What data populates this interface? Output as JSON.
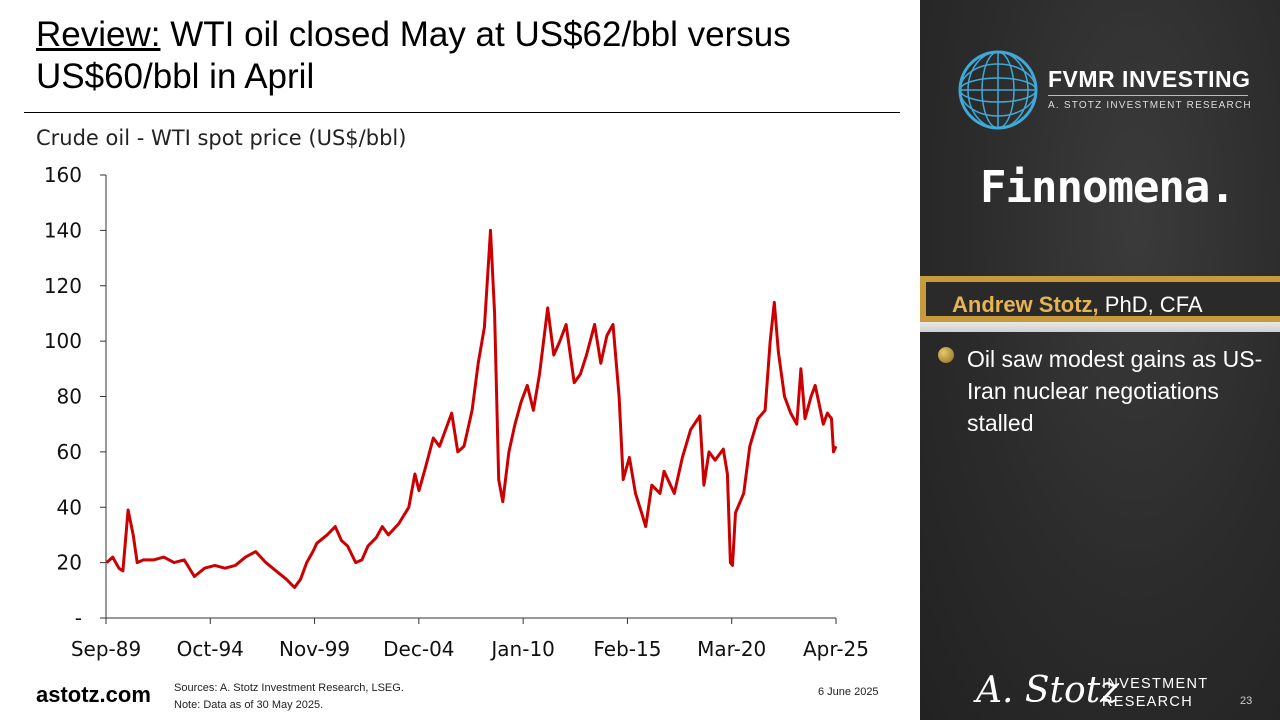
{
  "slide": {
    "title_lead": "Review:",
    "title_rest": " WTI oil closed May at US$62/bbl versus US$60/bbl in April",
    "source_line1": "Sources: A. Stotz Investment Research, LSEG.",
    "source_line2": "Note: Data as of 30 May 2025.",
    "date": "6 June 2025",
    "footer_site": "astotz.com",
    "page_number": "23"
  },
  "sidebar": {
    "brand_name": "FVMR INVESTING",
    "brand_sub": "A. STOTZ INVESTMENT RESEARCH",
    "partner": "Finnomena.",
    "author_name": "Andrew Stotz,",
    "author_credentials": " PhD, CFA",
    "bullet": "Oil saw modest gains as US-Iran nuclear negotiations stalled",
    "signature": "A. Stotz",
    "research_line1": "INVESTMENT",
    "research_line2": "RESEARCH",
    "accent_color": "#c79a3c"
  },
  "chart_data": {
    "type": "line",
    "title": "Crude oil - WTI spot price (US$/bbl)",
    "x_tick_labels": [
      "Sep-89",
      "Oct-94",
      "Nov-99",
      "Dec-04",
      "Jan-10",
      "Feb-15",
      "Mar-20",
      "Apr-25"
    ],
    "y_tick_labels": [
      "-",
      "20",
      "40",
      "60",
      "80",
      "100",
      "120",
      "140",
      "160"
    ],
    "ylim": [
      0,
      160
    ],
    "xlim_years": [
      1989.67,
      2025.42
    ],
    "line_color": "#cc0000",
    "series": [
      {
        "name": "WTI spot price",
        "points": [
          [
            1989.7,
            20
          ],
          [
            1990.0,
            22
          ],
          [
            1990.3,
            18
          ],
          [
            1990.5,
            17
          ],
          [
            1990.75,
            39
          ],
          [
            1991.0,
            30
          ],
          [
            1991.2,
            20
          ],
          [
            1991.5,
            21
          ],
          [
            1992.0,
            21
          ],
          [
            1992.5,
            22
          ],
          [
            1993.0,
            20
          ],
          [
            1993.5,
            21
          ],
          [
            1994.0,
            15
          ],
          [
            1994.5,
            18
          ],
          [
            1995.0,
            19
          ],
          [
            1995.5,
            18
          ],
          [
            1996.0,
            19
          ],
          [
            1996.5,
            22
          ],
          [
            1997.0,
            24
          ],
          [
            1997.5,
            20
          ],
          [
            1998.0,
            17
          ],
          [
            1998.5,
            14
          ],
          [
            1998.9,
            11
          ],
          [
            1999.2,
            14
          ],
          [
            1999.5,
            20
          ],
          [
            1999.8,
            24
          ],
          [
            2000.0,
            27
          ],
          [
            2000.5,
            30
          ],
          [
            2000.9,
            33
          ],
          [
            2001.2,
            28
          ],
          [
            2001.5,
            26
          ],
          [
            2001.9,
            20
          ],
          [
            2002.2,
            21
          ],
          [
            2002.5,
            26
          ],
          [
            2002.9,
            29
          ],
          [
            2003.2,
            33
          ],
          [
            2003.5,
            30
          ],
          [
            2004.0,
            34
          ],
          [
            2004.5,
            40
          ],
          [
            2004.8,
            52
          ],
          [
            2005.0,
            46
          ],
          [
            2005.3,
            54
          ],
          [
            2005.7,
            65
          ],
          [
            2006.0,
            62
          ],
          [
            2006.6,
            74
          ],
          [
            2006.9,
            60
          ],
          [
            2007.2,
            62
          ],
          [
            2007.6,
            75
          ],
          [
            2007.9,
            92
          ],
          [
            2008.2,
            105
          ],
          [
            2008.5,
            140
          ],
          [
            2008.7,
            110
          ],
          [
            2008.9,
            50
          ],
          [
            2009.1,
            42
          ],
          [
            2009.4,
            60
          ],
          [
            2009.7,
            70
          ],
          [
            2010.0,
            78
          ],
          [
            2010.3,
            84
          ],
          [
            2010.6,
            75
          ],
          [
            2010.9,
            88
          ],
          [
            2011.3,
            112
          ],
          [
            2011.6,
            95
          ],
          [
            2011.9,
            100
          ],
          [
            2012.2,
            106
          ],
          [
            2012.6,
            85
          ],
          [
            2012.9,
            88
          ],
          [
            2013.2,
            95
          ],
          [
            2013.6,
            106
          ],
          [
            2013.9,
            92
          ],
          [
            2014.2,
            102
          ],
          [
            2014.5,
            106
          ],
          [
            2014.8,
            80
          ],
          [
            2015.0,
            50
          ],
          [
            2015.3,
            58
          ],
          [
            2015.6,
            45
          ],
          [
            2015.9,
            38
          ],
          [
            2016.1,
            33
          ],
          [
            2016.4,
            48
          ],
          [
            2016.8,
            45
          ],
          [
            2017.0,
            53
          ],
          [
            2017.5,
            45
          ],
          [
            2017.9,
            58
          ],
          [
            2018.3,
            68
          ],
          [
            2018.75,
            73
          ],
          [
            2018.95,
            48
          ],
          [
            2019.2,
            60
          ],
          [
            2019.5,
            57
          ],
          [
            2019.9,
            61
          ],
          [
            2020.1,
            52
          ],
          [
            2020.25,
            20
          ],
          [
            2020.35,
            19
          ],
          [
            2020.5,
            38
          ],
          [
            2020.9,
            45
          ],
          [
            2021.2,
            62
          ],
          [
            2021.6,
            72
          ],
          [
            2021.95,
            75
          ],
          [
            2022.2,
            100
          ],
          [
            2022.4,
            114
          ],
          [
            2022.6,
            96
          ],
          [
            2022.9,
            80
          ],
          [
            2023.2,
            74
          ],
          [
            2023.5,
            70
          ],
          [
            2023.7,
            90
          ],
          [
            2023.9,
            72
          ],
          [
            2024.2,
            80
          ],
          [
            2024.4,
            84
          ],
          [
            2024.6,
            77
          ],
          [
            2024.8,
            70
          ],
          [
            2025.0,
            74
          ],
          [
            2025.2,
            72
          ],
          [
            2025.3,
            60
          ],
          [
            2025.42,
            62
          ]
        ]
      }
    ]
  }
}
